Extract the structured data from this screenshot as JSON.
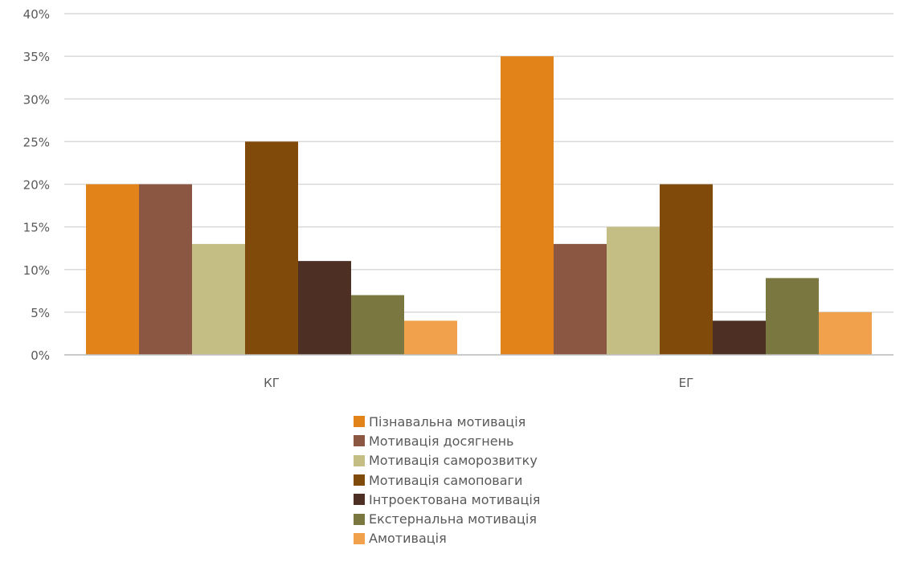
{
  "chart_data": {
    "type": "bar",
    "categories": [
      "КГ",
      "ЕГ"
    ],
    "series": [
      {
        "name": "Пізнавальна мотивація",
        "values": [
          20,
          35
        ],
        "color": "#E2831A"
      },
      {
        "name": "Мотивація досягнень",
        "values": [
          20,
          13
        ],
        "color": "#8B5742"
      },
      {
        "name": "Мотивація саморозвитку",
        "values": [
          13,
          15
        ],
        "color": "#C4BD84"
      },
      {
        "name": "Мотивація самоповаги",
        "values": [
          25,
          20
        ],
        "color": "#7F4A0A"
      },
      {
        "name": "Інтроектована мотивація",
        "values": [
          11,
          4
        ],
        "color": "#4E2F24"
      },
      {
        "name": "Екстернальна мотивація",
        "values": [
          7,
          9
        ],
        "color": "#7A7840"
      },
      {
        "name": "Амотивація",
        "values": [
          4,
          5
        ],
        "color": "#F1A14C"
      }
    ],
    "yticks": [
      "0%",
      "5%",
      "10%",
      "15%",
      "20%",
      "25%",
      "30%",
      "35%",
      "40%"
    ],
    "ylim": [
      0,
      40
    ],
    "unit": "%",
    "grid": true,
    "legend_position": "bottom"
  }
}
